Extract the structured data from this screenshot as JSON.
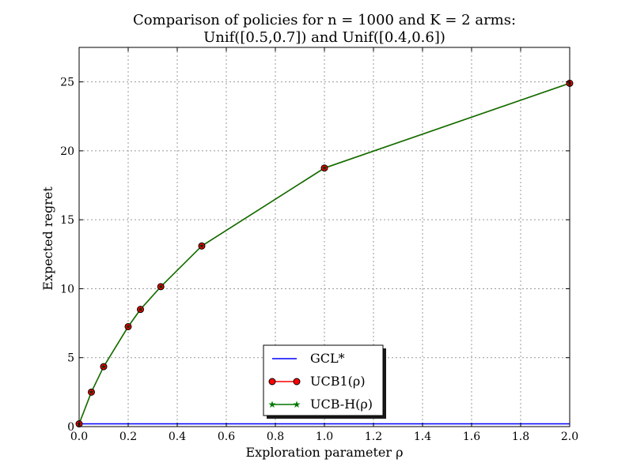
{
  "chart_data": {
    "type": "line",
    "title_lines": [
      "Comparison of policies for n = 1000 and K = 2 arms:",
      "Unif([0.5,0.7]) and Unif([0.4,0.6])"
    ],
    "xlabel": "Exploration parameter ρ",
    "ylabel": "Expected regret",
    "xlim": [
      0.0,
      2.0
    ],
    "ylim": [
      0,
      27.5
    ],
    "xticks": [
      "0.0",
      "0.2",
      "0.4",
      "0.6",
      "0.8",
      "1.0",
      "1.2",
      "1.4",
      "1.6",
      "1.8",
      "2.0"
    ],
    "yticks": [
      "0",
      "5",
      "10",
      "15",
      "20",
      "25"
    ],
    "grid": true,
    "legend_position": "lower-center",
    "series": [
      {
        "name": "GCL*",
        "color": "#0000ff",
        "marker": "none",
        "x": [
          0.0,
          2.0
        ],
        "y": [
          0.2,
          0.2
        ]
      },
      {
        "name": "UCB1(ρ)",
        "color": "#ff0000",
        "marker": "circle",
        "x": [
          0.0,
          0.05,
          0.1,
          0.2,
          0.25,
          0.333,
          0.5,
          1.0,
          2.0
        ],
        "y": [
          0.2,
          2.5,
          4.35,
          7.25,
          8.5,
          10.15,
          13.1,
          18.75,
          24.9
        ]
      },
      {
        "name": "UCB-H(ρ)",
        "color": "#007700",
        "marker": "star",
        "x": [
          0.0,
          0.05,
          0.1,
          0.2,
          0.25,
          0.333,
          0.5,
          1.0,
          2.0
        ],
        "y": [
          0.2,
          2.5,
          4.35,
          7.25,
          8.5,
          10.15,
          13.1,
          18.75,
          24.9
        ]
      }
    ]
  }
}
